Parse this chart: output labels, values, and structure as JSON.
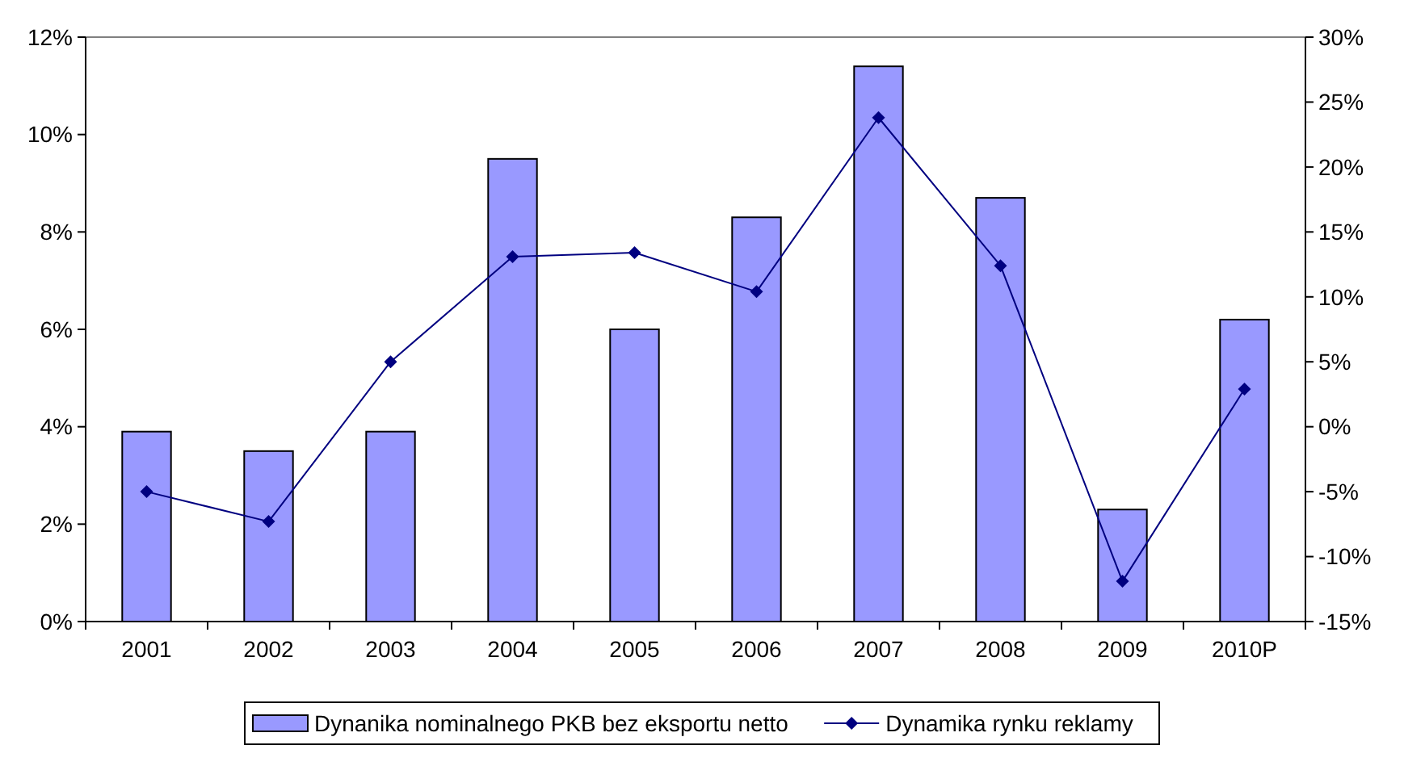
{
  "chart_data": {
    "type": "bar",
    "categories": [
      "2001",
      "2002",
      "2003",
      "2004",
      "2005",
      "2006",
      "2007",
      "2008",
      "2009",
      "2010P"
    ],
    "series": [
      {
        "name": "Dynanika nominalnego PKB bez eksportu netto",
        "color": "#9999ff",
        "values": [
          3.9,
          3.5,
          3.9,
          9.5,
          6.0,
          8.3,
          11.4,
          8.7,
          2.3,
          6.2
        ]
      },
      {
        "name": "Dynamika rynku reklamy",
        "type": "line",
        "axis": "y2",
        "color": "#000080",
        "marker": "diamond",
        "values": [
          -5.0,
          -7.3,
          5.0,
          13.1,
          13.4,
          10.4,
          23.8,
          12.4,
          -11.9,
          2.9
        ]
      }
    ],
    "ylim": [
      0,
      12
    ],
    "yticks": [
      {
        "value": 0,
        "label": "0%"
      },
      {
        "value": 2,
        "label": "2%"
      },
      {
        "value": 4,
        "label": "4%"
      },
      {
        "value": 6,
        "label": "6%"
      },
      {
        "value": 8,
        "label": "8%"
      },
      {
        "value": 10,
        "label": "10%"
      },
      {
        "value": 12,
        "label": "12%"
      }
    ],
    "y2lim": [
      -15,
      30
    ],
    "y2ticks": [
      {
        "value": -15,
        "label": "-15%"
      },
      {
        "value": -10,
        "label": "-10%"
      },
      {
        "value": -5,
        "label": "-5%"
      },
      {
        "value": 0,
        "label": "0%"
      },
      {
        "value": 5,
        "label": "5%"
      },
      {
        "value": 10,
        "label": "10%"
      },
      {
        "value": 15,
        "label": "15%"
      },
      {
        "value": 20,
        "label": "20%"
      },
      {
        "value": 25,
        "label": "25%"
      },
      {
        "value": 30,
        "label": "30%"
      }
    ],
    "legend": "bottom",
    "grid": false
  }
}
